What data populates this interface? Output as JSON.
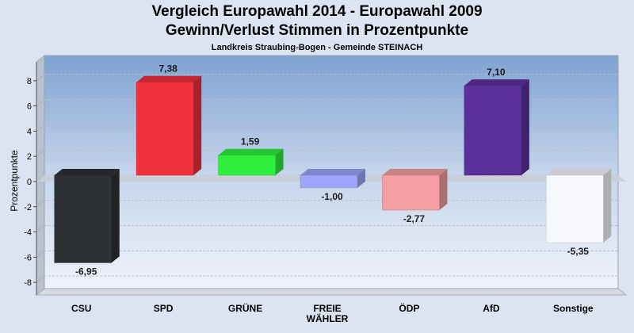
{
  "title": "Vergleich Europawahl 2014 - Europawahl 2009",
  "subtitle": "Gewinn/Verlust Stimmen in Prozentpunkte",
  "region": "Landkreis Straubing-Bogen - Gemeinde STEINACH",
  "chart_data": {
    "type": "bar",
    "title": "Vergleich Europawahl 2014 - Europawahl 2009",
    "subtitle": "Gewinn/Verlust Stimmen in Prozentpunkte",
    "xlabel": "",
    "ylabel": "Prozentpunkte",
    "ylim": [
      -9,
      9.5
    ],
    "yticks": [
      -8,
      -6,
      -4,
      -2,
      0,
      2,
      4,
      6,
      8
    ],
    "grid": true,
    "categories": [
      {
        "label": "CSU",
        "value": -6.95,
        "value_label": "-6,95",
        "color": "#2e3134"
      },
      {
        "label": "SPD",
        "value": 7.38,
        "value_label": "7,38",
        "color": "#f0303c"
      },
      {
        "label": "GRÜNE",
        "value": 1.59,
        "value_label": "1,59",
        "color": "#2ef03c"
      },
      {
        "label": "FREIE WÄHLER",
        "value": -1.0,
        "value_label": "-1,00",
        "color": "#9ea5fa"
      },
      {
        "label": "ÖDP",
        "value": -2.77,
        "value_label": "-2,77",
        "color": "#f49ea3"
      },
      {
        "label": "AfD",
        "value": 7.1,
        "value_label": "7,10",
        "color": "#5b2f9c"
      },
      {
        "label": "Sonstige",
        "value": -5.35,
        "value_label": "-5,35",
        "color": "#f7f8fc"
      }
    ]
  }
}
